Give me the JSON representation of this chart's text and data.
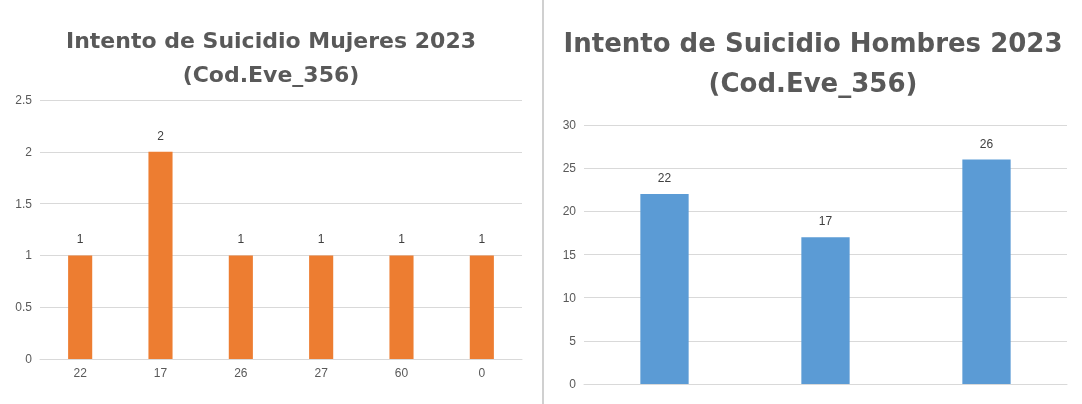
{
  "chart_data": [
    {
      "type": "bar",
      "title": "Intento de Suicidio Mujeres 2023\n(Cod.Eve_356)",
      "categories": [
        "22",
        "17",
        "26",
        "27",
        "60",
        "0"
      ],
      "values": [
        1,
        2,
        1,
        1,
        1,
        1
      ],
      "color": "#ed7d31",
      "ylim": [
        0,
        2.5
      ],
      "yticks": [
        0,
        0.5,
        1,
        1.5,
        2,
        2.5
      ],
      "grid": "y",
      "data_labels": true
    },
    {
      "type": "bar",
      "title": "Intento de Suicidio Hombres 2023\n(Cod.Eve_356)",
      "categories": [
        null,
        null,
        null
      ],
      "values": [
        22,
        17,
        26
      ],
      "color": "#5b9bd5",
      "ylim": [
        0,
        30
      ],
      "yticks": [
        0,
        5,
        10,
        15,
        20,
        25,
        30
      ],
      "grid": "y",
      "data_labels": true,
      "tick_labels": "y"
    }
  ]
}
